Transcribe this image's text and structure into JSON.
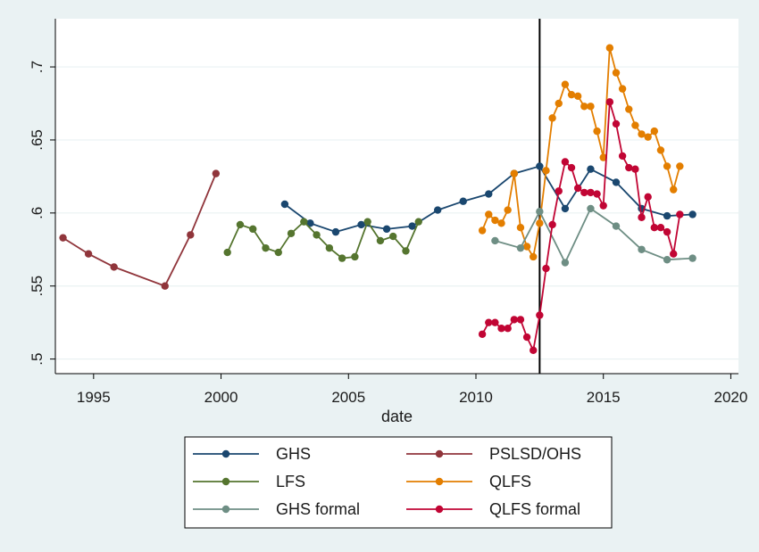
{
  "chart_data": {
    "type": "line",
    "xlabel": "date",
    "ylabel": "",
    "xlim": [
      1993.5,
      2020.3
    ],
    "ylim": [
      0.49,
      0.733
    ],
    "x_ticks": [
      1995,
      2000,
      2005,
      2010,
      2015,
      2020
    ],
    "x_tick_labels": [
      "1995",
      "2000",
      "2005",
      "2010",
      "2015",
      "2020"
    ],
    "y_ticks": [
      0.5,
      0.55,
      0.6,
      0.65,
      0.7
    ],
    "y_tick_labels": [
      ".5",
      ".55",
      ".6",
      ".65",
      ".7"
    ],
    "grid": true,
    "legend_position": "bottom",
    "reference_line_x": 2012.5,
    "series": [
      {
        "name": "GHS",
        "color": "#1a476f",
        "points": [
          [
            2002.5,
            0.606
          ],
          [
            2003.5,
            0.593
          ],
          [
            2004.5,
            0.587
          ],
          [
            2005.5,
            0.592
          ],
          [
            2006.5,
            0.589
          ],
          [
            2007.5,
            0.591
          ],
          [
            2008.5,
            0.602
          ],
          [
            2009.5,
            0.608
          ],
          [
            2010.5,
            0.613
          ],
          [
            2011.5,
            0.627
          ],
          [
            2012.5,
            0.632
          ],
          [
            2013.5,
            0.603
          ],
          [
            2014.5,
            0.63
          ],
          [
            2015.5,
            0.621
          ],
          [
            2016.5,
            0.603
          ],
          [
            2017.5,
            0.598
          ],
          [
            2018.5,
            0.599
          ]
        ]
      },
      {
        "name": "PSLSD/OHS",
        "color": "#90353b",
        "points": [
          [
            1993.8,
            0.583
          ],
          [
            1994.8,
            0.572
          ],
          [
            1995.8,
            0.563
          ],
          [
            1997.8,
            0.55
          ],
          [
            1998.8,
            0.585
          ],
          [
            1999.8,
            0.627
          ]
        ]
      },
      {
        "name": "LFS",
        "color": "#55752f",
        "points": [
          [
            2000.25,
            0.573
          ],
          [
            2000.75,
            0.592
          ],
          [
            2001.25,
            0.589
          ],
          [
            2001.75,
            0.576
          ],
          [
            2002.25,
            0.573
          ],
          [
            2002.75,
            0.586
          ],
          [
            2003.25,
            0.594
          ],
          [
            2003.75,
            0.585
          ],
          [
            2004.25,
            0.576
          ],
          [
            2004.75,
            0.569
          ],
          [
            2005.25,
            0.57
          ],
          [
            2005.75,
            0.594
          ],
          [
            2006.25,
            0.581
          ],
          [
            2006.75,
            0.584
          ],
          [
            2007.25,
            0.574
          ],
          [
            2007.75,
            0.594
          ]
        ]
      },
      {
        "name": "QLFS",
        "color": "#e37e00",
        "points": [
          [
            2010.25,
            0.588
          ],
          [
            2010.5,
            0.599
          ],
          [
            2010.75,
            0.595
          ],
          [
            2011.0,
            0.593
          ],
          [
            2011.25,
            0.602
          ],
          [
            2011.5,
            0.627
          ],
          [
            2011.75,
            0.59
          ],
          [
            2012.0,
            0.577
          ],
          [
            2012.25,
            0.57
          ],
          [
            2012.5,
            0.593
          ],
          [
            2012.75,
            0.629
          ],
          [
            2013.0,
            0.665
          ],
          [
            2013.25,
            0.675
          ],
          [
            2013.5,
            0.688
          ],
          [
            2013.75,
            0.681
          ],
          [
            2014.0,
            0.68
          ],
          [
            2014.25,
            0.673
          ],
          [
            2014.5,
            0.673
          ],
          [
            2014.75,
            0.656
          ],
          [
            2015.0,
            0.638
          ],
          [
            2015.25,
            0.713
          ],
          [
            2015.5,
            0.696
          ],
          [
            2015.75,
            0.685
          ],
          [
            2016.0,
            0.671
          ],
          [
            2016.25,
            0.66
          ],
          [
            2016.5,
            0.654
          ],
          [
            2016.75,
            0.652
          ],
          [
            2017.0,
            0.656
          ],
          [
            2017.25,
            0.643
          ],
          [
            2017.5,
            0.632
          ],
          [
            2017.75,
            0.616
          ],
          [
            2018.0,
            0.632
          ]
        ]
      },
      {
        "name": "GHS formal",
        "color": "#6e8e84",
        "points": [
          [
            2010.75,
            0.581
          ],
          [
            2011.75,
            0.576
          ],
          [
            2012.5,
            0.601
          ],
          [
            2013.5,
            0.566
          ],
          [
            2014.5,
            0.603
          ],
          [
            2015.5,
            0.591
          ],
          [
            2016.5,
            0.575
          ],
          [
            2017.5,
            0.568
          ],
          [
            2018.5,
            0.569
          ]
        ]
      },
      {
        "name": "QLFS formal",
        "color": "#c10534",
        "points": [
          [
            2010.25,
            0.517
          ],
          [
            2010.5,
            0.525
          ],
          [
            2010.75,
            0.525
          ],
          [
            2011.0,
            0.521
          ],
          [
            2011.25,
            0.521
          ],
          [
            2011.5,
            0.527
          ],
          [
            2011.75,
            0.527
          ],
          [
            2012.0,
            0.515
          ],
          [
            2012.25,
            0.506
          ],
          [
            2012.5,
            0.53
          ],
          [
            2012.75,
            0.562
          ],
          [
            2013.0,
            0.592
          ],
          [
            2013.25,
            0.615
          ],
          [
            2013.5,
            0.635
          ],
          [
            2013.75,
            0.631
          ],
          [
            2014.0,
            0.617
          ],
          [
            2014.25,
            0.614
          ],
          [
            2014.5,
            0.614
          ],
          [
            2014.75,
            0.613
          ],
          [
            2015.0,
            0.605
          ],
          [
            2015.25,
            0.676
          ],
          [
            2015.5,
            0.661
          ],
          [
            2015.75,
            0.639
          ],
          [
            2016.0,
            0.631
          ],
          [
            2016.25,
            0.63
          ],
          [
            2016.5,
            0.597
          ],
          [
            2016.75,
            0.611
          ],
          [
            2017.0,
            0.59
          ],
          [
            2017.25,
            0.59
          ],
          [
            2017.5,
            0.587
          ],
          [
            2017.75,
            0.572
          ],
          [
            2018.0,
            0.599
          ]
        ]
      }
    ],
    "legend_order": [
      0,
      1,
      2,
      3,
      4,
      5
    ]
  }
}
